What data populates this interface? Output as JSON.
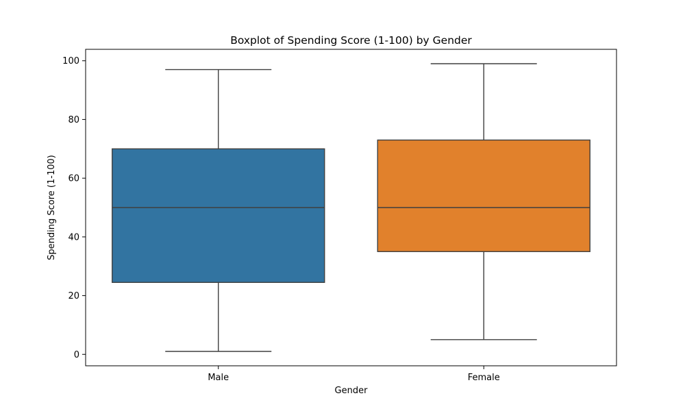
{
  "chart_data": {
    "type": "box",
    "title": "Boxplot of Spending Score (1-100) by Gender",
    "xlabel": "Gender",
    "ylabel": "Spending Score (1-100)",
    "ylim": [
      -3.9,
      103.9
    ],
    "yticks": [
      0,
      20,
      40,
      60,
      80,
      100
    ],
    "grid": false,
    "categories": [
      "Male",
      "Female"
    ],
    "boxes": [
      {
        "category": "Male",
        "min": 1,
        "q1": 24.5,
        "median": 50,
        "q3": 70,
        "max": 97,
        "color": "#3274a1"
      },
      {
        "category": "Female",
        "min": 5,
        "q1": 35,
        "median": 50,
        "q3": 73,
        "max": 99,
        "color": "#e1812c"
      }
    ],
    "line_color": "#3f3f3f"
  }
}
